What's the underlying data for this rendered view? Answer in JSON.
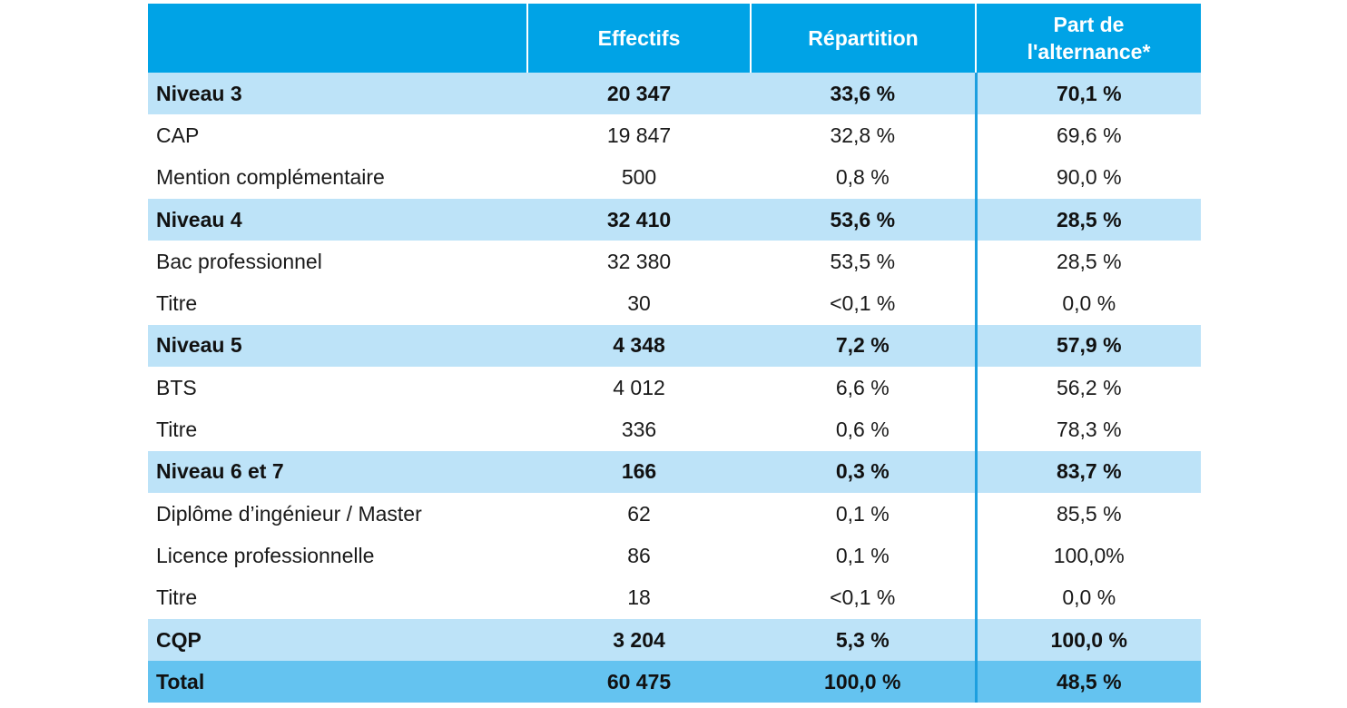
{
  "header": {
    "col_label": "",
    "col_effectifs": "Effectifs",
    "col_repartition": "Répartition",
    "col_alternance_line1": "Part de",
    "col_alternance_line2": "l'alternance*"
  },
  "rows": [
    {
      "type": "level",
      "label": "Niveau 3",
      "effectifs": "20 347",
      "repartition": "33,6 %",
      "alternance": "70,1 %"
    },
    {
      "type": "sub",
      "label": "CAP",
      "effectifs": "19 847",
      "repartition": "32,8 %",
      "alternance": "69,6 %"
    },
    {
      "type": "sub",
      "label": "Mention complémentaire",
      "effectifs": "500",
      "repartition": "0,8 %",
      "alternance": "90,0 %"
    },
    {
      "type": "level",
      "label": "Niveau 4",
      "effectifs": "32 410",
      "repartition": "53,6 %",
      "alternance": "28,5 %"
    },
    {
      "type": "sub",
      "label": "Bac professionnel",
      "effectifs": "32 380",
      "repartition": "53,5 %",
      "alternance": "28,5 %"
    },
    {
      "type": "sub",
      "label": "Titre",
      "effectifs": "30",
      "repartition": "<0,1 %",
      "alternance": "0,0 %"
    },
    {
      "type": "level",
      "label": "Niveau 5",
      "effectifs": "4 348",
      "repartition": "7,2 %",
      "alternance": "57,9 %"
    },
    {
      "type": "sub",
      "label": "BTS",
      "effectifs": "4 012",
      "repartition": "6,6 %",
      "alternance": "56,2 %"
    },
    {
      "type": "sub",
      "label": "Titre",
      "effectifs": "336",
      "repartition": "0,6 %",
      "alternance": "78,3 %"
    },
    {
      "type": "level",
      "label": "Niveau 6 et 7",
      "effectifs": "166",
      "repartition": "0,3 %",
      "alternance": "83,7 %"
    },
    {
      "type": "sub",
      "label": "Diplôme d’ingénieur / Master",
      "effectifs": "62",
      "repartition": "0,1 %",
      "alternance": "85,5 %"
    },
    {
      "type": "sub",
      "label": "Licence professionnelle",
      "effectifs": "86",
      "repartition": "0,1 %",
      "alternance": "100,0%"
    },
    {
      "type": "sub",
      "label": "Titre",
      "effectifs": "18",
      "repartition": "<0,1 %",
      "alternance": "0,0 %"
    },
    {
      "type": "level",
      "label": "CQP",
      "effectifs": "3 204",
      "repartition": "5,3 %",
      "alternance": "100,0 %"
    },
    {
      "type": "total",
      "label": "Total",
      "effectifs": "60 475",
      "repartition": "100,0 %",
      "alternance": "48,5 %"
    }
  ],
  "colors": {
    "header_bg": "#00a3e6",
    "level_row_bg": "#bde3f8",
    "total_row_bg": "#64c3f0",
    "divider": "#1d9fdf"
  }
}
